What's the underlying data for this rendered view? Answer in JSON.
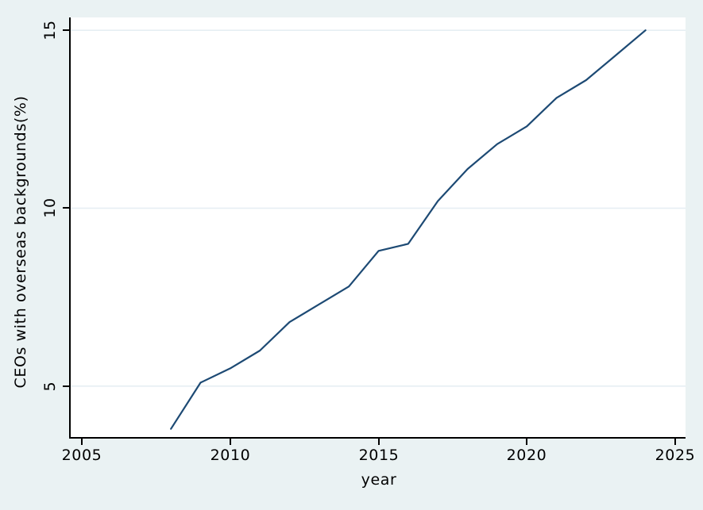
{
  "figure": {
    "background_color": "#eaf2f3",
    "plot_background_color": "#ffffff",
    "line_color": "#1d4a74",
    "grid_color": "#e6eef3",
    "axis_color": "#000000"
  },
  "chart_data": {
    "type": "line",
    "title": "",
    "xlabel": "year",
    "ylabel": "CEOs with overseas backgrounds(%)",
    "x": [
      2008,
      2009,
      2010,
      2011,
      2012,
      2013,
      2014,
      2015,
      2016,
      2017,
      2018,
      2019,
      2020,
      2021,
      2022,
      2023,
      2024
    ],
    "y": [
      3.8,
      5.1,
      5.5,
      6.0,
      6.8,
      7.3,
      7.8,
      8.8,
      9.0,
      10.2,
      11.1,
      11.8,
      12.3,
      13.1,
      13.6,
      14.3,
      15.0
    ],
    "series_name": "CEOs with overseas backgrounds(%)",
    "xlim": [
      2004.62,
      2025.35
    ],
    "ylim": [
      3.57,
      15.36
    ],
    "x_ticks": [
      2005,
      2010,
      2015,
      2020,
      2025
    ],
    "y_ticks": [
      5,
      10,
      15
    ],
    "grid": "horizontal gridlines at y ticks",
    "legend": "none"
  }
}
